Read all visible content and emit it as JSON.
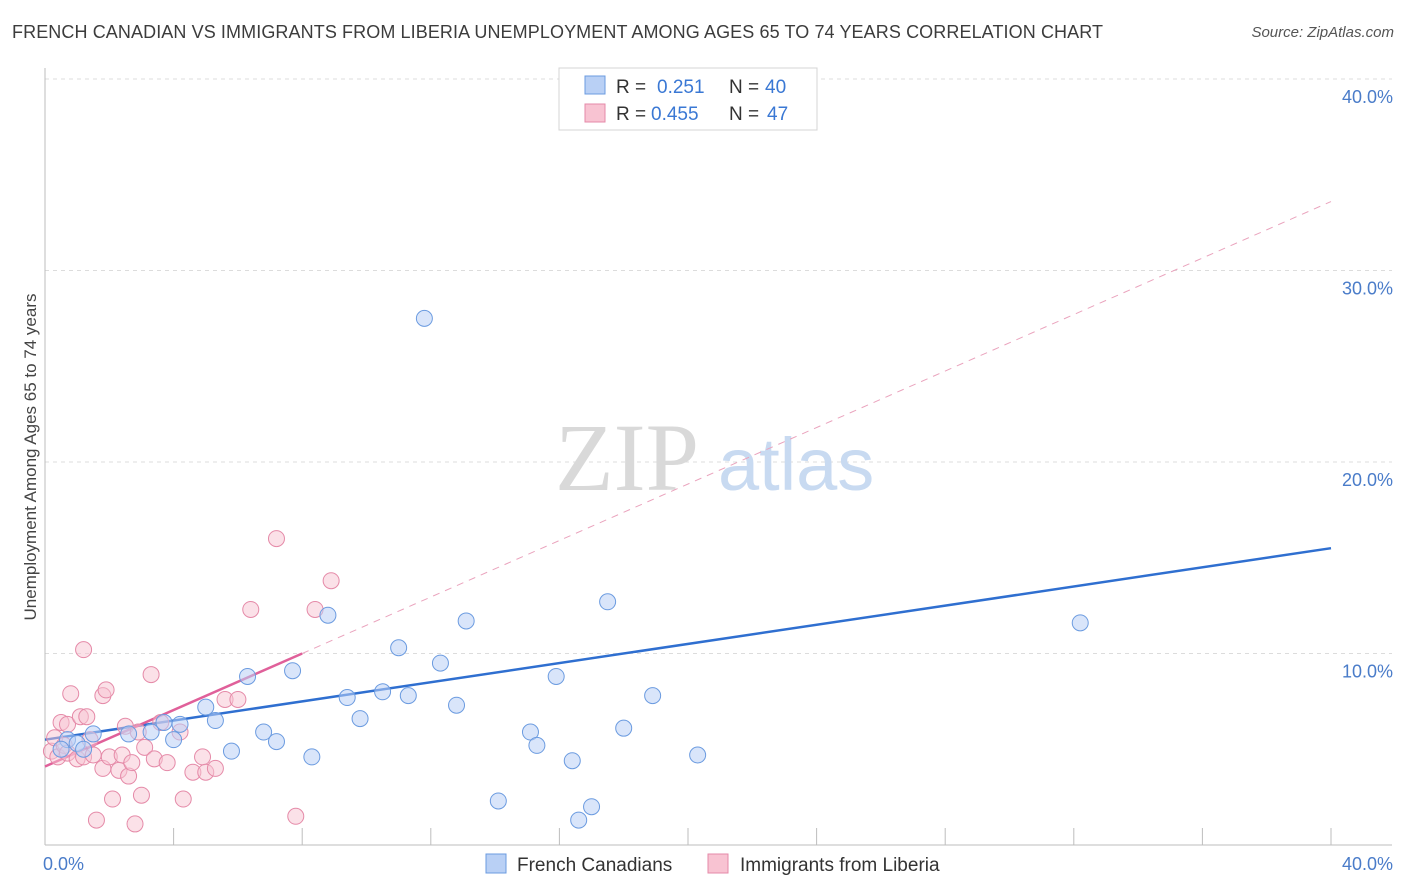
{
  "title": "FRENCH CANADIAN VS IMMIGRANTS FROM LIBERIA UNEMPLOYMENT AMONG AGES 65 TO 74 YEARS CORRELATION CHART",
  "source": "Source: ZipAtlas.com",
  "watermark": {
    "zip": "ZIP",
    "atlas": "atlas"
  },
  "legend": {
    "r_label": "R =",
    "n_label": "N =",
    "rows": [
      {
        "r": "0.251",
        "n": "40"
      },
      {
        "r": "0.455",
        "n": "47"
      }
    ]
  },
  "colors": {
    "blue_fill": "#b9d0f5",
    "blue_stroke": "#6b9be0",
    "blue_line": "#2f6fd0",
    "pink_fill": "#f8c3d2",
    "pink_stroke": "#e58aa8",
    "pink_line": "#e0609a"
  },
  "chart_data": {
    "type": "scatter",
    "title": "FRENCH CANADIAN VS IMMIGRANTS FROM LIBERIA UNEMPLOYMENT AMONG AGES 65 TO 74 YEARS CORRELATION CHART",
    "xlabel": "",
    "ylabel": "Unemployment Among Ages 65 to 74 years",
    "xlim": [
      0,
      40
    ],
    "ylim": [
      0,
      40
    ],
    "x_tick_labels": [
      "0.0%",
      "40.0%"
    ],
    "y_ticks": [
      10,
      20,
      30,
      40
    ],
    "y_tick_labels": [
      "10.0%",
      "20.0%",
      "30.0%",
      "40.0%"
    ],
    "legend_position": "top-center",
    "series": [
      {
        "name": "French Canadians",
        "r": 0.251,
        "n": 40,
        "points": [
          [
            0.7,
            5.5
          ],
          [
            1.0,
            5.3
          ],
          [
            1.5,
            5.8
          ],
          [
            1.2,
            5.0
          ],
          [
            2.6,
            5.8
          ],
          [
            3.7,
            6.4
          ],
          [
            3.3,
            5.9
          ],
          [
            4.0,
            5.5
          ],
          [
            4.2,
            6.3
          ],
          [
            5.0,
            7.2
          ],
          [
            5.3,
            6.5
          ],
          [
            5.8,
            4.9
          ],
          [
            6.3,
            8.8
          ],
          [
            6.8,
            5.9
          ],
          [
            7.2,
            5.4
          ],
          [
            7.7,
            9.1
          ],
          [
            8.3,
            4.6
          ],
          [
            8.8,
            12.0
          ],
          [
            9.4,
            7.7
          ],
          [
            9.8,
            6.6
          ],
          [
            10.5,
            8.0
          ],
          [
            11.0,
            10.3
          ],
          [
            11.3,
            7.8
          ],
          [
            11.8,
            27.5
          ],
          [
            12.3,
            9.5
          ],
          [
            12.8,
            7.3
          ],
          [
            13.1,
            11.7
          ],
          [
            14.1,
            2.3
          ],
          [
            15.1,
            5.9
          ],
          [
            15.3,
            5.2
          ],
          [
            15.9,
            8.8
          ],
          [
            16.4,
            4.4
          ],
          [
            16.6,
            1.3
          ],
          [
            17.0,
            2.0
          ],
          [
            17.5,
            12.7
          ],
          [
            18.0,
            6.1
          ],
          [
            18.9,
            7.8
          ],
          [
            20.3,
            4.7
          ],
          [
            32.2,
            11.6
          ],
          [
            0.5,
            5.0
          ]
        ]
      },
      {
        "name": "Immigrants from Liberia",
        "r": 0.455,
        "n": 47,
        "points": [
          [
            0.2,
            4.9
          ],
          [
            0.3,
            5.6
          ],
          [
            0.4,
            4.6
          ],
          [
            0.5,
            6.4
          ],
          [
            0.6,
            5.2
          ],
          [
            0.7,
            6.3
          ],
          [
            0.7,
            4.8
          ],
          [
            0.8,
            7.9
          ],
          [
            1.0,
            4.5
          ],
          [
            1.1,
            6.7
          ],
          [
            1.2,
            4.6
          ],
          [
            1.3,
            6.7
          ],
          [
            1.2,
            10.2
          ],
          [
            1.5,
            4.7
          ],
          [
            1.6,
            1.3
          ],
          [
            1.8,
            7.8
          ],
          [
            1.8,
            4.0
          ],
          [
            1.9,
            8.1
          ],
          [
            2.0,
            4.6
          ],
          [
            2.1,
            2.4
          ],
          [
            2.3,
            3.9
          ],
          [
            2.4,
            4.7
          ],
          [
            2.5,
            6.2
          ],
          [
            2.6,
            3.6
          ],
          [
            2.7,
            4.3
          ],
          [
            2.8,
            1.1
          ],
          [
            2.9,
            5.9
          ],
          [
            3.0,
            2.6
          ],
          [
            3.1,
            5.1
          ],
          [
            3.3,
            8.9
          ],
          [
            3.4,
            4.5
          ],
          [
            3.6,
            6.4
          ],
          [
            3.8,
            4.3
          ],
          [
            4.2,
            5.9
          ],
          [
            4.3,
            2.4
          ],
          [
            4.6,
            3.8
          ],
          [
            4.9,
            4.6
          ],
          [
            5.0,
            3.8
          ],
          [
            5.3,
            4.0
          ],
          [
            5.6,
            7.6
          ],
          [
            6.0,
            7.6
          ],
          [
            6.4,
            12.3
          ],
          [
            7.2,
            16.0
          ],
          [
            7.8,
            1.5
          ],
          [
            8.4,
            12.3
          ],
          [
            8.9,
            13.8
          ],
          [
            1.4,
            5.5
          ]
        ]
      }
    ],
    "trendlines": [
      {
        "series": "French Canadians",
        "x": [
          0,
          40
        ],
        "y": [
          5.5,
          15.5
        ],
        "style": "solid"
      },
      {
        "series": "Immigrants from Liberia",
        "x": [
          0,
          8.0
        ],
        "y": [
          4.1,
          10.0
        ],
        "style": "solid"
      },
      {
        "series": "Immigrants from Liberia",
        "x": [
          8.0,
          40
        ],
        "y": [
          10.0,
          33.6
        ],
        "style": "dashed"
      }
    ]
  },
  "bottom_legend": [
    "French Canadians",
    "Immigrants from Liberia"
  ]
}
